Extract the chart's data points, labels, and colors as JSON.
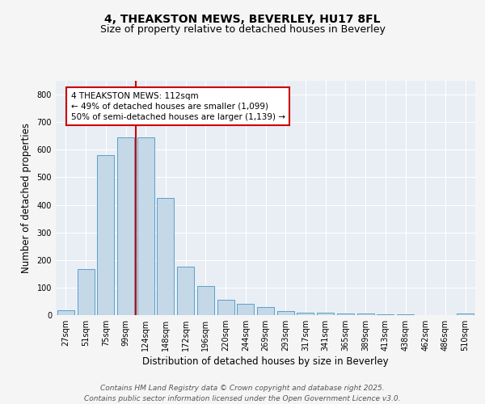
{
  "title": "4, THEAKSTON MEWS, BEVERLEY, HU17 8FL",
  "subtitle": "Size of property relative to detached houses in Beverley",
  "xlabel": "Distribution of detached houses by size in Beverley",
  "ylabel": "Number of detached properties",
  "categories": [
    "27sqm",
    "51sqm",
    "75sqm",
    "99sqm",
    "124sqm",
    "148sqm",
    "172sqm",
    "196sqm",
    "220sqm",
    "244sqm",
    "269sqm",
    "293sqm",
    "317sqm",
    "341sqm",
    "365sqm",
    "389sqm",
    "413sqm",
    "438sqm",
    "462sqm",
    "486sqm",
    "510sqm"
  ],
  "values": [
    18,
    168,
    580,
    645,
    645,
    425,
    175,
    105,
    57,
    40,
    30,
    15,
    10,
    8,
    7,
    5,
    3,
    2,
    1,
    1,
    5
  ],
  "bar_color": "#c5d8e8",
  "bar_edge_color": "#5a9fc8",
  "red_line_index": 3,
  "annotation_text": "4 THEAKSTON MEWS: 112sqm\n← 49% of detached houses are smaller (1,099)\n50% of semi-detached houses are larger (1,139) →",
  "annotation_box_facecolor": "#ffffff",
  "annotation_box_edgecolor": "#cc0000",
  "red_line_color": "#cc0000",
  "ylim": [
    0,
    850
  ],
  "yticks": [
    0,
    100,
    200,
    300,
    400,
    500,
    600,
    700,
    800
  ],
  "footer_line1": "Contains HM Land Registry data © Crown copyright and database right 2025.",
  "footer_line2": "Contains public sector information licensed under the Open Government Licence v3.0.",
  "plot_bg_color": "#e8eef4",
  "fig_bg_color": "#f5f5f5",
  "grid_color": "#ffffff",
  "title_fontsize": 10,
  "subtitle_fontsize": 9,
  "axis_label_fontsize": 8.5,
  "tick_fontsize": 7,
  "annotation_fontsize": 7.5,
  "footer_fontsize": 6.5
}
